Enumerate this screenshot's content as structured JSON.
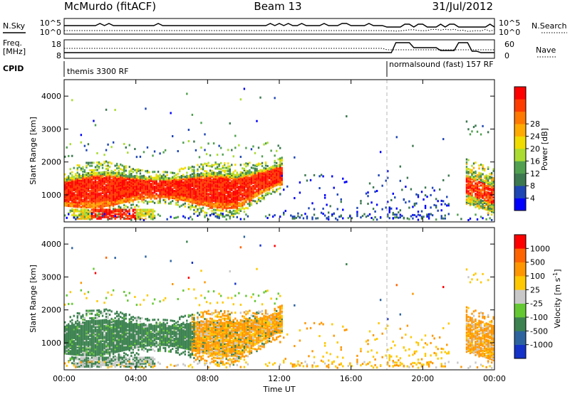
{
  "header": {
    "station": "McMurdo (fitACF)",
    "beam": "Beam 13",
    "date": "31/Jul/2012"
  },
  "status_strip": {
    "nsky_label": "N.Sky",
    "nsearch_label": "N.Search",
    "noise_ticks_left": [
      "10^5",
      "10^0"
    ],
    "noise_ticks_right": [
      "10^5",
      "10^0"
    ],
    "freq_label": "Freq.",
    "freq_unit": "[MHz]",
    "freq_ticks": [
      "18",
      "8"
    ],
    "nave_label": "Nave",
    "nave_ticks": [
      "60",
      "0"
    ],
    "cpid_label": "CPID",
    "cpid_segments": [
      {
        "label": "themis 3300 RF",
        "start_hour": 0
      },
      {
        "label": "normalsound (fast) 157 RF",
        "start_hour": 18
      }
    ]
  },
  "chart_data": [
    {
      "type": "heatmap",
      "name": "power",
      "xlabel": "Time UT",
      "ylabel": "Slant Range [km]",
      "xlim": [
        0,
        24
      ],
      "ylim": [
        180,
        4500
      ],
      "x_ticks": [
        "00:00",
        "04:00",
        "08:00",
        "12:00",
        "16:00",
        "20:00",
        "00:00"
      ],
      "y_ticks": [
        1000,
        2000,
        3000,
        4000
      ],
      "colorbar": {
        "label": "Power [dB]",
        "ticks": [
          "4",
          "8",
          "12",
          "16",
          "20",
          "24",
          "28"
        ],
        "range": [
          0,
          30
        ],
        "colors": [
          "#0000ff",
          "#1e46b4",
          "#3c7850",
          "#50a050",
          "#aadc32",
          "#f0dc00",
          "#ffaa00",
          "#ff7800",
          "#ff3c00",
          "#ff0000"
        ]
      }
    },
    {
      "type": "heatmap",
      "name": "velocity",
      "xlabel": "Time UT",
      "ylabel": "Slant Range [km]",
      "xlim": [
        0,
        24
      ],
      "ylim": [
        180,
        4500
      ],
      "x_ticks": [
        "00:00",
        "04:00",
        "08:00",
        "12:00",
        "16:00",
        "20:00",
        "00:00"
      ],
      "y_ticks": [
        1000,
        2000,
        3000,
        4000
      ],
      "colorbar": {
        "label": "Velocity [m s",
        "label_sup": "-1",
        "label_end": "]",
        "ticks": [
          "1000",
          "500",
          "100",
          "25",
          "-25",
          "-100",
          "-500",
          "-1000"
        ],
        "colors": [
          "#1432c8",
          "#2d64a0",
          "#3c8250",
          "#64c832",
          "#c8c8c8",
          "#ffc800",
          "#ff9600",
          "#ff6400",
          "#ff0000"
        ]
      }
    }
  ],
  "colors": {
    "ground_scatter": "#a0a0a0",
    "axis": "#000000",
    "mode_change_line": "#b4b4b4"
  }
}
